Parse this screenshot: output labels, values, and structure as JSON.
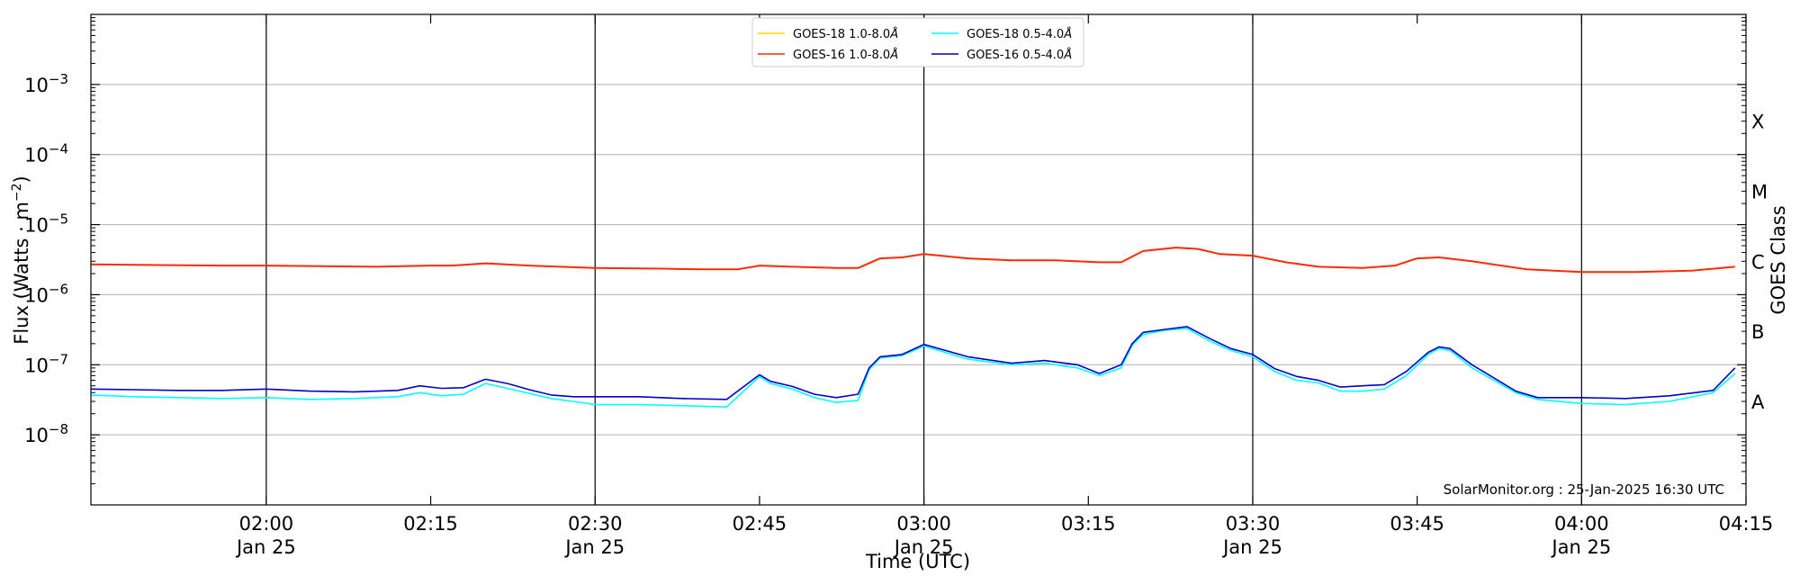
{
  "chart_data": {
    "type": "line",
    "xlabel": "Time (UTC)",
    "ylabel": "Flux (Watts · m",
    "ylabel_sup": "−2",
    "ylabel_close": ")",
    "ylabel_right": "GOES Class",
    "y_scale": "log",
    "xlim": [
      "01:44",
      "04:15"
    ],
    "ylim": [
      1e-09,
      0.01
    ],
    "grid": "horizontal at decades",
    "vertical_lines": [
      "02:00",
      "02:30",
      "03:00",
      "03:30",
      "04:00"
    ],
    "x_ticks": [
      {
        "t": "02:00",
        "label": "02:00",
        "sub": "Jan 25"
      },
      {
        "t": "02:15",
        "label": "02:15",
        "sub": ""
      },
      {
        "t": "02:30",
        "label": "02:30",
        "sub": "Jan 25"
      },
      {
        "t": "02:45",
        "label": "02:45",
        "sub": ""
      },
      {
        "t": "03:00",
        "label": "03:00",
        "sub": "Jan 25"
      },
      {
        "t": "03:15",
        "label": "03:15",
        "sub": ""
      },
      {
        "t": "03:30",
        "label": "03:30",
        "sub": "Jan 25"
      },
      {
        "t": "03:45",
        "label": "03:45",
        "sub": ""
      },
      {
        "t": "04:00",
        "label": "04:00",
        "sub": "Jan 25"
      },
      {
        "t": "04:15",
        "label": "04:15",
        "sub": ""
      }
    ],
    "y_ticks": [
      {
        "value": 1e-08,
        "base": "10",
        "exp": "−8"
      },
      {
        "value": 1e-07,
        "base": "10",
        "exp": "−7"
      },
      {
        "value": 1e-06,
        "base": "10",
        "exp": "−6"
      },
      {
        "value": 1e-05,
        "base": "10",
        "exp": "−5"
      },
      {
        "value": 0.0001,
        "base": "10",
        "exp": "−4"
      },
      {
        "value": 0.001,
        "base": "10",
        "exp": "−3"
      }
    ],
    "goes_classes": [
      {
        "label": "A",
        "value": 3e-08
      },
      {
        "label": "B",
        "value": 3e-07
      },
      {
        "label": "C",
        "value": 3e-06
      },
      {
        "label": "M",
        "value": 3e-05
      },
      {
        "label": "X",
        "value": 0.0003
      }
    ],
    "legend_position": "top-center",
    "credit": "SolarMonitor.org : 25-Jan-2025 16:30 UTC",
    "series": [
      {
        "name": "GOES-18 1.0-8.0",
        "unit": "Å",
        "color": "#ffd700",
        "x": [],
        "y": []
      },
      {
        "name": "GOES-16 1.0-8.0",
        "unit": "Å",
        "color": "#ff2a00",
        "x": [
          "01:44",
          "01:50",
          "01:56",
          "02:00",
          "02:05",
          "02:10",
          "02:15",
          "02:17",
          "02:20",
          "02:24",
          "02:30",
          "02:36",
          "02:40",
          "02:43",
          "02:45",
          "02:48",
          "02:52",
          "02:54",
          "02:56",
          "02:58",
          "03:00",
          "03:04",
          "03:08",
          "03:12",
          "03:16",
          "03:18",
          "03:20",
          "03:23",
          "03:25",
          "03:27",
          "03:30",
          "03:33",
          "03:36",
          "03:40",
          "03:43",
          "03:45",
          "03:47",
          "03:50",
          "03:55",
          "04:00",
          "04:05",
          "04:10",
          "04:14"
        ],
        "y": [
          2.7e-06,
          2.65e-06,
          2.6e-06,
          2.6e-06,
          2.55e-06,
          2.5e-06,
          2.6e-06,
          2.6e-06,
          2.8e-06,
          2.6e-06,
          2.4e-06,
          2.35e-06,
          2.3e-06,
          2.3e-06,
          2.6e-06,
          2.5e-06,
          2.4e-06,
          2.4e-06,
          3.3e-06,
          3.4e-06,
          3.8e-06,
          3.3e-06,
          3.1e-06,
          3.1e-06,
          2.9e-06,
          2.9e-06,
          4.2e-06,
          4.7e-06,
          4.5e-06,
          3.8e-06,
          3.6e-06,
          2.9e-06,
          2.5e-06,
          2.4e-06,
          2.6e-06,
          3.3e-06,
          3.4e-06,
          3e-06,
          2.3e-06,
          2.1e-06,
          2.1e-06,
          2.2e-06,
          2.5e-06
        ]
      },
      {
        "name": "GOES-18 0.5-4.0",
        "unit": "Å",
        "color": "#00ffff",
        "x": [
          "01:44",
          "01:48",
          "01:52",
          "01:56",
          "02:00",
          "02:04",
          "02:08",
          "02:12",
          "02:14",
          "02:16",
          "02:18",
          "02:20",
          "02:22",
          "02:24",
          "02:26",
          "02:28",
          "02:30",
          "02:34",
          "02:38",
          "02:42",
          "02:45",
          "02:46",
          "02:48",
          "02:50",
          "02:52",
          "02:54",
          "02:55",
          "02:56",
          "02:58",
          "03:00",
          "03:04",
          "03:08",
          "03:11",
          "03:14",
          "03:16",
          "03:18",
          "03:19",
          "03:20",
          "03:22",
          "03:24",
          "03:26",
          "03:28",
          "03:30",
          "03:32",
          "03:34",
          "03:36",
          "03:38",
          "03:40",
          "03:42",
          "03:44",
          "03:46",
          "03:47",
          "03:48",
          "03:50",
          "03:52",
          "03:54",
          "03:56",
          "04:00",
          "04:04",
          "04:08",
          "04:12",
          "04:14"
        ],
        "y": [
          3.7e-08,
          3.5e-08,
          3.4e-08,
          3.3e-08,
          3.4e-08,
          3.2e-08,
          3.3e-08,
          3.5e-08,
          4e-08,
          3.6e-08,
          3.8e-08,
          5.4e-08,
          4.6e-08,
          3.9e-08,
          3.3e-08,
          3e-08,
          2.7e-08,
          2.7e-08,
          2.6e-08,
          2.5e-08,
          6.8e-08,
          5.4e-08,
          4.5e-08,
          3.4e-08,
          2.9e-08,
          3.1e-08,
          8.5e-08,
          1.25e-07,
          1.35e-07,
          1.85e-07,
          1.2e-07,
          1e-07,
          1.05e-07,
          9e-08,
          7e-08,
          9e-08,
          1.9e-07,
          2.7e-07,
          3.1e-07,
          3.3e-07,
          2.2e-07,
          1.6e-07,
          1.3e-07,
          8e-08,
          6e-08,
          5.5e-08,
          4.2e-08,
          4.2e-08,
          4.5e-08,
          7e-08,
          1.4e-07,
          1.7e-07,
          1.6e-07,
          9e-08,
          6e-08,
          4e-08,
          3.2e-08,
          2.8e-08,
          2.7e-08,
          3e-08,
          4e-08,
          7.5e-08
        ]
      },
      {
        "name": "GOES-16 0.5-4.0",
        "unit": "Å",
        "color": "#0000cc",
        "x": [
          "01:44",
          "01:48",
          "01:52",
          "01:56",
          "02:00",
          "02:04",
          "02:08",
          "02:12",
          "02:14",
          "02:16",
          "02:18",
          "02:20",
          "02:22",
          "02:24",
          "02:26",
          "02:28",
          "02:30",
          "02:34",
          "02:38",
          "02:42",
          "02:45",
          "02:46",
          "02:48",
          "02:50",
          "02:52",
          "02:54",
          "02:55",
          "02:56",
          "02:58",
          "03:00",
          "03:04",
          "03:08",
          "03:11",
          "03:14",
          "03:16",
          "03:18",
          "03:19",
          "03:20",
          "03:22",
          "03:24",
          "03:26",
          "03:28",
          "03:30",
          "03:32",
          "03:34",
          "03:36",
          "03:38",
          "03:40",
          "03:42",
          "03:44",
          "03:46",
          "03:47",
          "03:48",
          "03:50",
          "03:52",
          "03:54",
          "03:56",
          "04:00",
          "04:04",
          "04:08",
          "04:12",
          "04:14"
        ],
        "y": [
          4.5e-08,
          4.4e-08,
          4.3e-08,
          4.3e-08,
          4.5e-08,
          4.2e-08,
          4.1e-08,
          4.3e-08,
          5e-08,
          4.6e-08,
          4.7e-08,
          6.2e-08,
          5.4e-08,
          4.4e-08,
          3.7e-08,
          3.5e-08,
          3.5e-08,
          3.5e-08,
          3.3e-08,
          3.2e-08,
          7.2e-08,
          5.8e-08,
          4.9e-08,
          3.8e-08,
          3.4e-08,
          3.8e-08,
          9e-08,
          1.3e-07,
          1.4e-07,
          1.95e-07,
          1.3e-07,
          1.05e-07,
          1.15e-07,
          1e-07,
          7.5e-08,
          1e-07,
          2e-07,
          2.9e-07,
          3.2e-07,
          3.5e-07,
          2.4e-07,
          1.7e-07,
          1.4e-07,
          8.8e-08,
          6.8e-08,
          6e-08,
          4.8e-08,
          5e-08,
          5.2e-08,
          8e-08,
          1.5e-07,
          1.8e-07,
          1.7e-07,
          1e-07,
          6.5e-08,
          4.2e-08,
          3.4e-08,
          3.4e-08,
          3.3e-08,
          3.6e-08,
          4.3e-08,
          9e-08
        ]
      }
    ]
  }
}
